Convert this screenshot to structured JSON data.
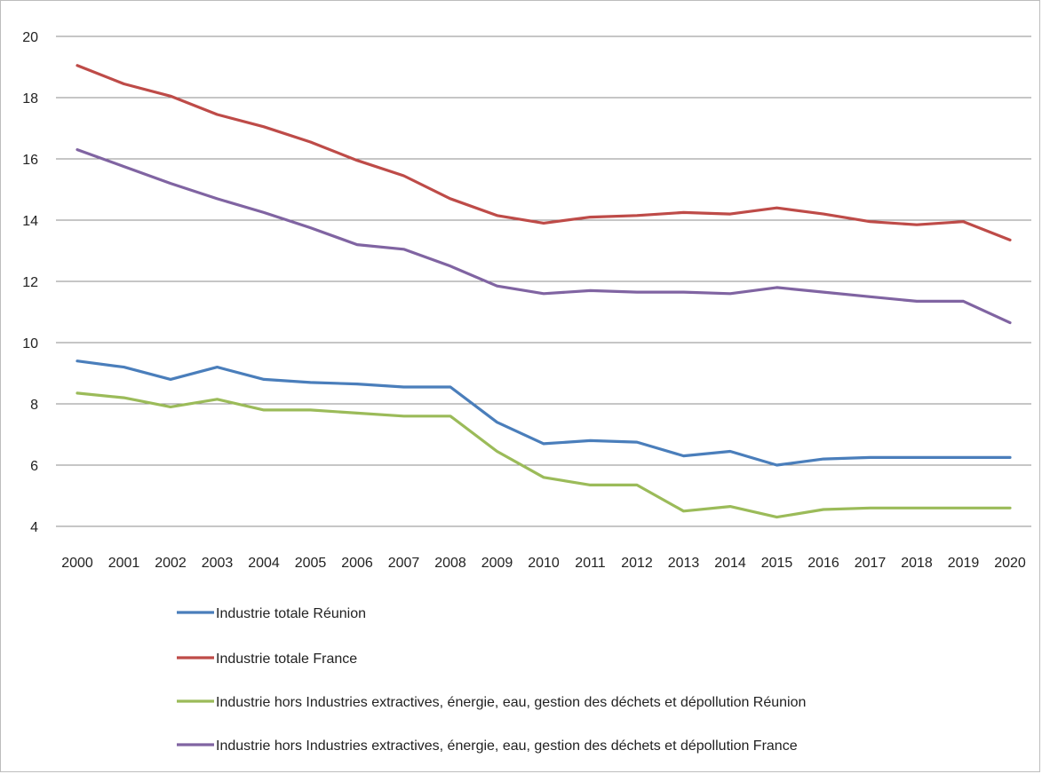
{
  "chart_data": {
    "type": "line",
    "title": "",
    "xlabel": "",
    "ylabel": "",
    "x": [
      "2000",
      "2001",
      "2002",
      "2003",
      "2004",
      "2005",
      "2006",
      "2007",
      "2008",
      "2009",
      "2010",
      "2011",
      "2012",
      "2013",
      "2014",
      "2015",
      "2016",
      "2017",
      "2018",
      "2019",
      "2020"
    ],
    "ylim": [
      4,
      20
    ],
    "yticks": [
      4,
      6,
      8,
      10,
      12,
      14,
      16,
      18,
      20
    ],
    "grid": true,
    "legend_position": "bottom",
    "series": [
      {
        "name": "Industrie totale Réunion",
        "color": "#4a7ebb",
        "values": [
          9.4,
          9.2,
          8.8,
          9.2,
          8.8,
          8.7,
          8.65,
          8.55,
          8.55,
          7.4,
          6.7,
          6.8,
          6.75,
          6.3,
          6.45,
          6.0,
          6.2,
          6.25,
          6.25,
          6.25,
          6.25
        ]
      },
      {
        "name": "Industrie totale France",
        "color": "#be4b48",
        "values": [
          19.05,
          18.45,
          18.05,
          17.45,
          17.05,
          16.55,
          15.95,
          15.45,
          14.7,
          14.15,
          13.9,
          14.1,
          14.15,
          14.25,
          14.2,
          14.4,
          14.2,
          13.95,
          13.85,
          13.95,
          13.35
        ]
      },
      {
        "name": "Industrie hors Industries extractives, énergie, eau, gestion des déchets et dépollution Réunion",
        "color": "#9bbb59",
        "values": [
          8.35,
          8.2,
          7.9,
          8.15,
          7.8,
          7.8,
          7.7,
          7.6,
          7.6,
          6.45,
          5.6,
          5.35,
          5.35,
          4.5,
          4.65,
          4.3,
          4.55,
          4.6,
          4.6,
          4.6,
          4.6
        ]
      },
      {
        "name": "Industrie hors Industries extractives, énergie, eau, gestion des déchets et dépollution France",
        "color": "#8064a2",
        "values": [
          16.3,
          15.75,
          15.2,
          14.7,
          14.25,
          13.75,
          13.2,
          13.05,
          12.5,
          11.85,
          11.6,
          11.7,
          11.65,
          11.65,
          11.6,
          11.8,
          11.65,
          11.5,
          11.35,
          11.35,
          10.65
        ]
      }
    ]
  }
}
